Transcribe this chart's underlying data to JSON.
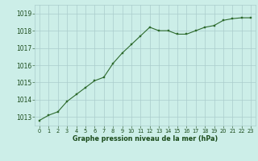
{
  "x": [
    0,
    1,
    2,
    3,
    4,
    5,
    6,
    7,
    8,
    9,
    10,
    11,
    12,
    13,
    14,
    15,
    16,
    17,
    18,
    19,
    20,
    21,
    22,
    23
  ],
  "y": [
    1012.8,
    1013.1,
    1013.3,
    1013.9,
    1014.3,
    1014.7,
    1015.1,
    1015.3,
    1016.1,
    1016.7,
    1017.2,
    1017.7,
    1018.2,
    1018.0,
    1018.0,
    1017.8,
    1017.8,
    1018.0,
    1018.2,
    1018.3,
    1018.6,
    1018.7,
    1018.75,
    1018.75
  ],
  "line_color": "#2d6a2d",
  "marker_color": "#2d6a2d",
  "bg_color": "#cceee8",
  "grid_color": "#aacccc",
  "xlabel": "Graphe pression niveau de la mer (hPa)",
  "xlabel_color": "#1a4a1a",
  "tick_color": "#1a4a1a",
  "ylim": [
    1012.5,
    1019.5
  ],
  "xlim": [
    -0.5,
    23.5
  ],
  "yticks": [
    1013,
    1014,
    1015,
    1016,
    1017,
    1018,
    1019
  ],
  "xticks": [
    0,
    1,
    2,
    3,
    4,
    5,
    6,
    7,
    8,
    9,
    10,
    11,
    12,
    13,
    14,
    15,
    16,
    17,
    18,
    19,
    20,
    21,
    22,
    23
  ]
}
